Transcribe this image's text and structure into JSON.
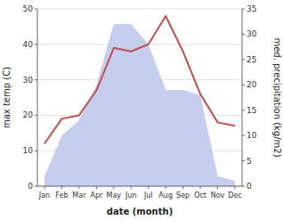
{
  "chart_data": {
    "type": "line",
    "xlabel": "date (month)",
    "ylabel": "max temp (C)",
    "y2label": "med. precipitation (kg/m2)",
    "categories": [
      "Jan",
      "Feb",
      "Mar",
      "Apr",
      "May",
      "Jun",
      "Jul",
      "Aug",
      "Sep",
      "Oct",
      "Nov",
      "Dec"
    ],
    "series": [
      {
        "type": "area",
        "axis": "y2",
        "color": "#c6cef0",
        "values": [
          2,
          10,
          13,
          20,
          32,
          32,
          28,
          19,
          19,
          18,
          2,
          1
        ]
      },
      {
        "type": "line",
        "color": "#c0504d",
        "values": [
          12,
          19,
          20,
          27,
          39,
          38,
          40,
          48,
          38,
          26,
          18,
          17
        ]
      }
    ],
    "ylim": [
      0,
      50
    ],
    "yticks": [
      0,
      10,
      20,
      30,
      40,
      50
    ],
    "y2lim": [
      0,
      35
    ],
    "y2ticks": [
      0,
      5,
      10,
      15,
      20,
      25,
      30,
      35
    ],
    "grid": true
  }
}
